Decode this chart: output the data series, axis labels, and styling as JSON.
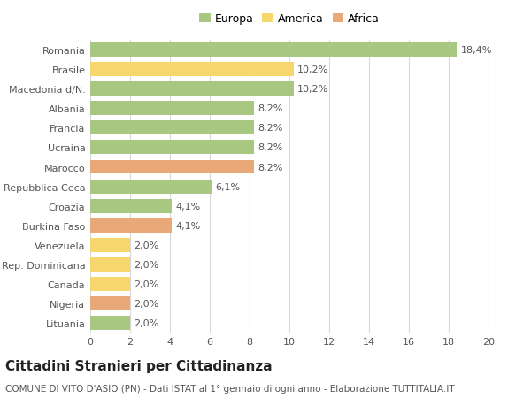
{
  "countries": [
    "Romania",
    "Brasile",
    "Macedonia d/N.",
    "Albania",
    "Francia",
    "Ucraina",
    "Marocco",
    "Repubblica Ceca",
    "Croazia",
    "Burkina Faso",
    "Venezuela",
    "Rep. Dominicana",
    "Canada",
    "Nigeria",
    "Lituania"
  ],
  "values": [
    18.4,
    10.2,
    10.2,
    8.2,
    8.2,
    8.2,
    8.2,
    6.1,
    4.1,
    4.1,
    2.0,
    2.0,
    2.0,
    2.0,
    2.0
  ],
  "labels": [
    "18,4%",
    "10,2%",
    "10,2%",
    "8,2%",
    "8,2%",
    "8,2%",
    "8,2%",
    "6,1%",
    "4,1%",
    "4,1%",
    "2,0%",
    "2,0%",
    "2,0%",
    "2,0%",
    "2,0%"
  ],
  "continents": [
    "Europa",
    "America",
    "Europa",
    "Europa",
    "Europa",
    "Europa",
    "Africa",
    "Europa",
    "Europa",
    "Africa",
    "America",
    "America",
    "America",
    "Africa",
    "Europa"
  ],
  "colors": {
    "Europa": "#a8c882",
    "America": "#f5d76e",
    "Africa": "#e8a878"
  },
  "xlim": [
    0,
    20
  ],
  "xticks": [
    0,
    2,
    4,
    6,
    8,
    10,
    12,
    14,
    16,
    18,
    20
  ],
  "title": "Cittadini Stranieri per Cittadinanza",
  "subtitle": "COMUNE DI VITO D'ASIO (PN) - Dati ISTAT al 1° gennaio di ogni anno - Elaborazione TUTTITALIA.IT",
  "background_color": "#ffffff",
  "grid_color": "#d8d8d8",
  "bar_height": 0.72,
  "title_fontsize": 11,
  "subtitle_fontsize": 7.5,
  "label_fontsize": 8,
  "tick_fontsize": 8,
  "legend_fontsize": 9
}
